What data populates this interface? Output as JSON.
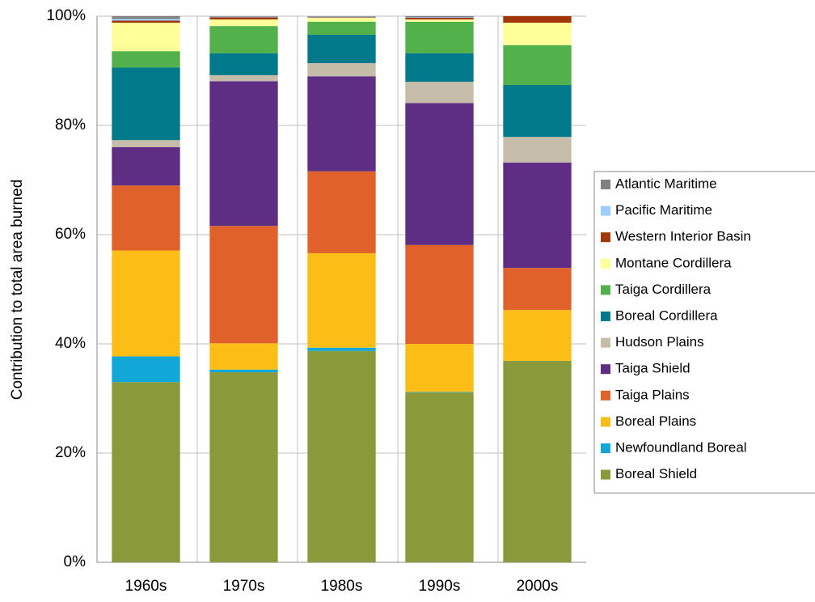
{
  "chart_data": {
    "type": "stacked_bar",
    "y_label": "Contribution to total area burned",
    "categories": [
      "1960s",
      "1970s",
      "1980s",
      "1990s",
      "2000s"
    ],
    "series": [
      {
        "name": "Boreal Shield",
        "color": "#8a9a3b",
        "values": [
          33.0,
          34.8,
          38.7,
          31.1,
          36.9
        ]
      },
      {
        "name": "Newfoundland Boreal",
        "color": "#11a7d8",
        "values": [
          4.7,
          0.5,
          0.6,
          0.1,
          0
        ]
      },
      {
        "name": "Boreal Plains",
        "color": "#fbbd16",
        "values": [
          19.4,
          4.8,
          17.3,
          8.8,
          9.3
        ]
      },
      {
        "name": "Taiga Plains",
        "color": "#e0622a",
        "values": [
          11.9,
          21.5,
          15.0,
          18.1,
          7.7
        ]
      },
      {
        "name": "Taiga Shield",
        "color": "#5e2e84",
        "values": [
          7.0,
          26.5,
          17.4,
          26.0,
          19.3
        ]
      },
      {
        "name": "Hudson Plains",
        "color": "#c5bcaa",
        "values": [
          1.3,
          1.1,
          2.4,
          3.9,
          4.7
        ]
      },
      {
        "name": "Boreal Cordillera",
        "color": "#00798a",
        "values": [
          13.3,
          4.0,
          5.2,
          5.2,
          9.5
        ]
      },
      {
        "name": "Taiga Cordillera",
        "color": "#53b14b",
        "values": [
          3.0,
          5.0,
          2.4,
          5.8,
          7.3
        ]
      },
      {
        "name": "Montane Cordillera",
        "color": "#ffff99",
        "values": [
          5.2,
          1.2,
          0.7,
          0.4,
          4.1
        ]
      },
      {
        "name": "Western Interior Basin",
        "color": "#a1360b",
        "values": [
          0.4,
          0.4,
          0.1,
          0.3,
          1.2
        ]
      },
      {
        "name": "Pacific Maritime",
        "color": "#99ccff",
        "values": [
          0.3,
          0.1,
          0.1,
          0.1,
          0
        ]
      },
      {
        "name": "Atlantic Maritime",
        "color": "#808080",
        "values": [
          0.5,
          0.1,
          0.1,
          0.2,
          0
        ]
      }
    ],
    "ylim": [
      0,
      100
    ],
    "yticks": [
      {
        "value": 0,
        "label": "0%"
      },
      {
        "value": 20,
        "label": "20%"
      },
      {
        "value": 40,
        "label": "40%"
      },
      {
        "value": 60,
        "label": "60%"
      },
      {
        "value": 80,
        "label": "80%"
      },
      {
        "value": 100,
        "label": "100%"
      }
    ],
    "grid": true,
    "legend": "right"
  }
}
